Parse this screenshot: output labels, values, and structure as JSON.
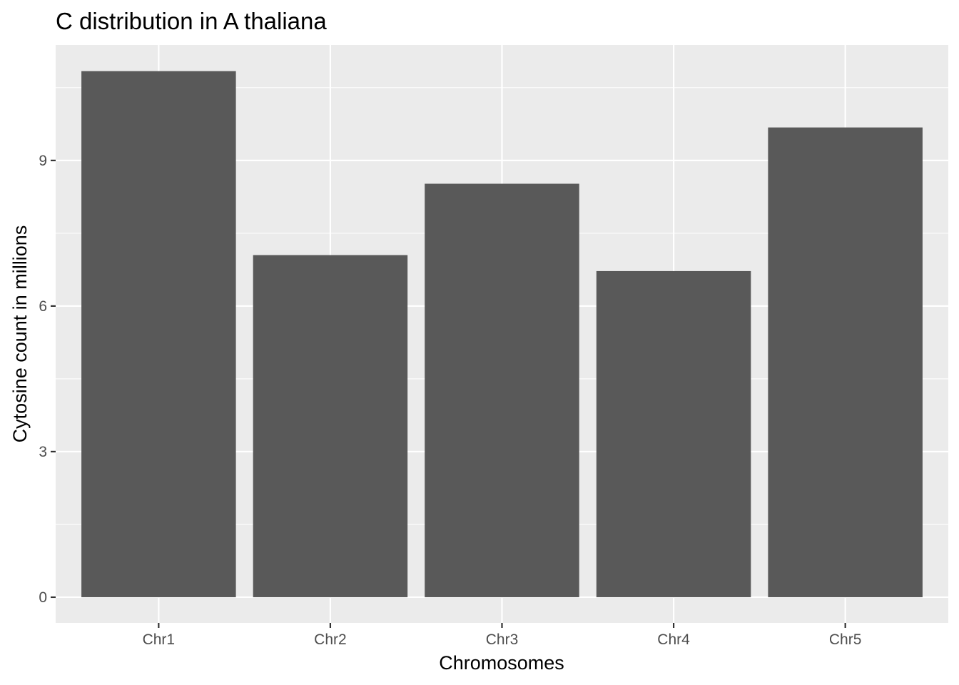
{
  "chart_data": {
    "type": "bar",
    "title": "C distribution in A thaliana",
    "xlabel": "Chromosomes",
    "ylabel": "Cytosine count in millions",
    "categories": [
      "Chr1",
      "Chr2",
      "Chr3",
      "Chr4",
      "Chr5"
    ],
    "values": [
      10.84,
      7.05,
      8.52,
      6.72,
      9.68
    ],
    "ylim": [
      -0.53,
      11.38
    ],
    "yticks": [
      0,
      3,
      6,
      9
    ],
    "ytick_labels": [
      "0",
      "3",
      "6",
      "9"
    ],
    "grid": true,
    "legend": "none",
    "colors": {
      "bar": "#595959",
      "panel": "#ebebeb",
      "grid": "#ffffff",
      "tick": "#333333"
    }
  }
}
